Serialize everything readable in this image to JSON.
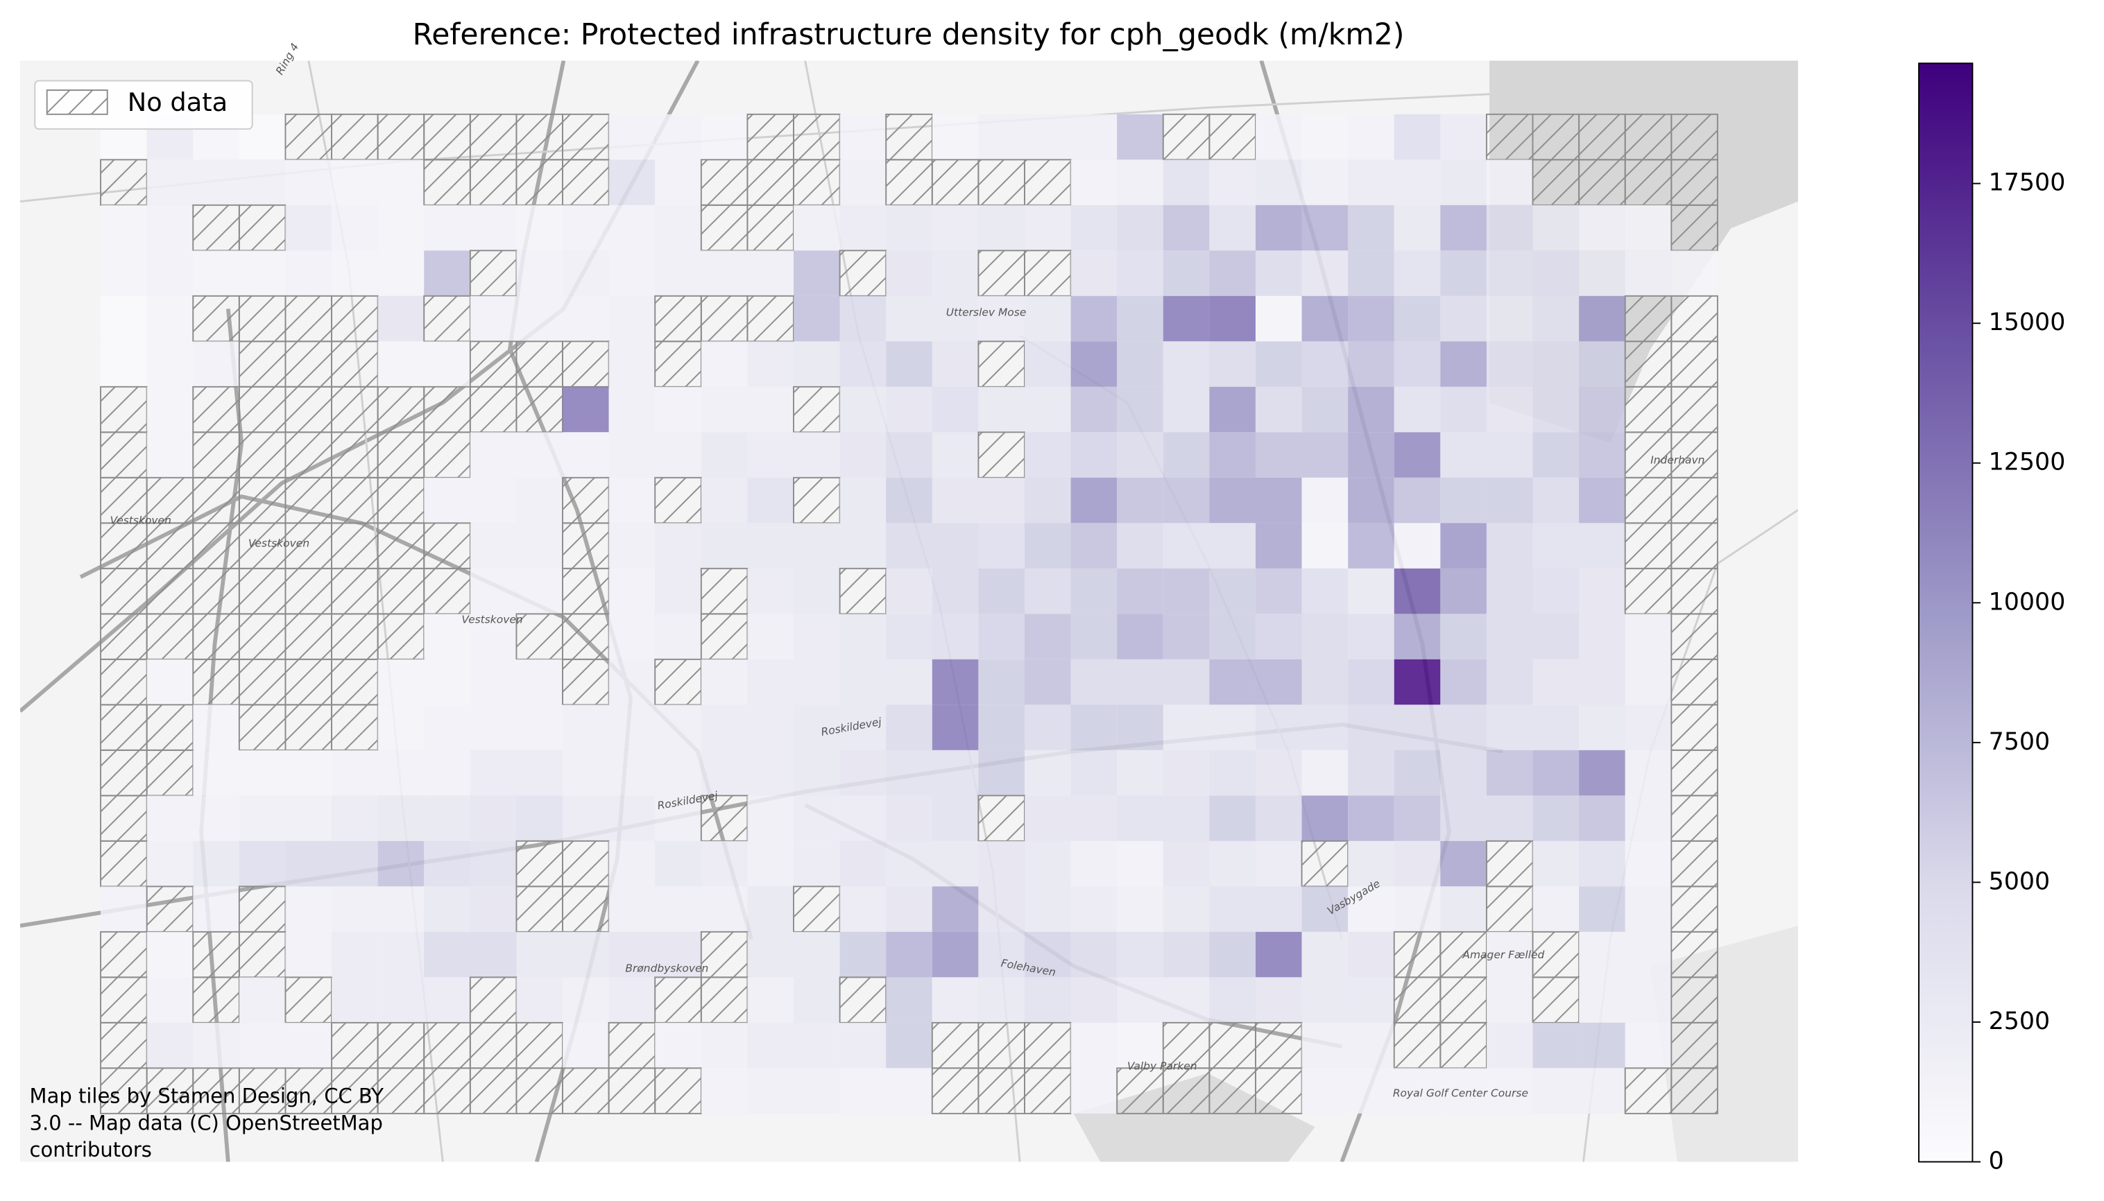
{
  "chart_data": {
    "type": "heatmap",
    "title": "Reference: Protected infrastructure density for cph_geodk (m/km2)",
    "legend_label": "No data",
    "attribution": [
      "Map tiles by Stamen Design, CC BY",
      "3.0 -- Map data (C) OpenStreetMap",
      "contributors"
    ],
    "map_labels": [
      "Ring 4",
      "Vestskoven",
      "Vestskoven",
      "Vestskoven",
      "Utterslev Mose",
      "Roskildevej",
      "Roskildevej",
      "Brøndbyskoven",
      "Folehaven",
      "Valby Parken",
      "Royal Golf Center Course",
      "Amager Fælled",
      "Inderhavn",
      "Vasbygade"
    ],
    "colormap": [
      "#fcfbfd",
      "#dadaeb",
      "#9e9ac8",
      "#6a51a3",
      "#3f007d"
    ],
    "clim": [
      0,
      19650
    ],
    "cticks": [
      0,
      2500,
      5000,
      7500,
      10000,
      12500,
      15000,
      17500
    ],
    "grid": [
      [
        500,
        2500,
        800,
        500,
        null,
        null,
        null,
        null,
        null,
        null,
        null,
        1500,
        1500,
        1000,
        null,
        null,
        1500,
        null,
        1000,
        2000,
        2000,
        2000,
        7000,
        null,
        null,
        1500,
        1000,
        1500,
        4500,
        2500,
        null,
        null,
        null,
        null,
        null
      ],
      [
        null,
        2000,
        2000,
        2000,
        1500,
        1000,
        1000,
        null,
        null,
        null,
        null,
        4000,
        1500,
        null,
        null,
        null,
        2000,
        null,
        null,
        null,
        null,
        1500,
        2000,
        4000,
        2500,
        3000,
        2000,
        2500,
        2500,
        3000,
        1500,
        null,
        null,
        null,
        null
      ],
      [
        1000,
        1500,
        null,
        null,
        2500,
        1500,
        1000,
        1500,
        1500,
        1000,
        1500,
        1500,
        2000,
        null,
        null,
        2000,
        2500,
        3000,
        2500,
        3000,
        2500,
        4000,
        5000,
        7000,
        4000,
        9000,
        8000,
        6000,
        3000,
        8000,
        5000,
        3000,
        1500,
        1000,
        null
      ],
      [
        1000,
        1500,
        1000,
        1000,
        1500,
        1000,
        1000,
        7000,
        null,
        1500,
        2000,
        1500,
        2000,
        2000,
        2000,
        7000,
        null,
        3500,
        3000,
        null,
        null,
        3500,
        4500,
        6000,
        7000,
        5000,
        3500,
        6000,
        4000,
        6000,
        4000,
        4500,
        3000,
        1500,
        1000
      ],
      [
        500,
        1000,
        null,
        null,
        null,
        null,
        3500,
        null,
        1500,
        1500,
        1500,
        2000,
        null,
        null,
        null,
        7000,
        5000,
        3000,
        3000,
        2500,
        3000,
        8000,
        6000,
        12000,
        12500,
        1000,
        9000,
        8000,
        6000,
        5000,
        3000,
        4000,
        10000,
        null,
        null
      ],
      [
        500,
        1000,
        1500,
        null,
        null,
        null,
        1000,
        1000,
        null,
        null,
        null,
        2000,
        null,
        1500,
        2500,
        3000,
        4500,
        6000,
        3500,
        null,
        4000,
        10000,
        6000,
        4000,
        5000,
        6000,
        5500,
        7000,
        5500,
        9000,
        4500,
        5000,
        6000,
        null,
        null
      ],
      [
        null,
        1000,
        null,
        null,
        null,
        null,
        null,
        null,
        null,
        null,
        12000,
        2000,
        1500,
        2000,
        2000,
        null,
        3000,
        3500,
        4500,
        3000,
        3000,
        7000,
        6000,
        4000,
        10000,
        5000,
        6000,
        9000,
        4000,
        5000,
        3500,
        5000,
        6500,
        null,
        null
      ],
      [
        null,
        1000,
        null,
        null,
        null,
        null,
        null,
        null,
        1500,
        1500,
        1500,
        2000,
        2000,
        3000,
        2500,
        2500,
        3500,
        5000,
        3000,
        null,
        4500,
        5500,
        5000,
        6000,
        8000,
        7000,
        7000,
        9000,
        11000,
        4000,
        4000,
        6000,
        7000,
        null,
        null
      ],
      [
        null,
        null,
        null,
        null,
        null,
        null,
        null,
        1500,
        1500,
        2000,
        null,
        1500,
        null,
        2500,
        4000,
        null,
        3000,
        6000,
        3500,
        3500,
        5000,
        10000,
        7000,
        7000,
        9000,
        9000,
        1500,
        9000,
        7000,
        6000,
        6000,
        5000,
        8000,
        null,
        null
      ],
      [
        null,
        null,
        null,
        null,
        null,
        null,
        null,
        null,
        2000,
        2000,
        null,
        2000,
        2500,
        3000,
        3000,
        3000,
        3000,
        5000,
        5000,
        4500,
        6000,
        7000,
        5000,
        4000,
        4000,
        9000,
        1000,
        8000,
        1500,
        10000,
        5000,
        4000,
        4000,
        null,
        null
      ],
      [
        null,
        null,
        null,
        null,
        null,
        null,
        null,
        null,
        1500,
        1500,
        null,
        1500,
        2500,
        null,
        2500,
        3000,
        null,
        3500,
        5000,
        6000,
        5000,
        6000,
        7000,
        7000,
        6000,
        6500,
        4500,
        3000,
        14000,
        9000,
        5000,
        4500,
        3500,
        null,
        null
      ],
      [
        null,
        null,
        null,
        null,
        null,
        null,
        null,
        1000,
        1500,
        null,
        null,
        1500,
        2000,
        null,
        2000,
        2500,
        3000,
        4000,
        4500,
        5500,
        7000,
        6000,
        8000,
        7000,
        6000,
        5500,
        5000,
        4500,
        9000,
        6000,
        5000,
        5000,
        3500,
        2000,
        null
      ],
      [
        null,
        1000,
        null,
        null,
        null,
        null,
        1000,
        1000,
        1500,
        1500,
        null,
        2000,
        null,
        2000,
        2500,
        2500,
        3000,
        3000,
        12000,
        6000,
        7000,
        5000,
        5000,
        5000,
        8000,
        8000,
        5000,
        5500,
        19000,
        7000,
        5000,
        3500,
        3500,
        2000,
        null
      ],
      [
        null,
        null,
        1000,
        null,
        null,
        null,
        1000,
        1500,
        1500,
        1500,
        2000,
        2000,
        2000,
        2500,
        2500,
        3000,
        3000,
        5000,
        12000,
        6000,
        5000,
        6000,
        6000,
        3000,
        3000,
        4000,
        4000,
        5000,
        5000,
        5000,
        4000,
        4000,
        3000,
        2500,
        null
      ],
      [
        null,
        null,
        1000,
        1000,
        1000,
        1500,
        1500,
        1500,
        2500,
        2500,
        2000,
        2000,
        2000,
        2500,
        2500,
        3000,
        3500,
        4000,
        4000,
        6000,
        3000,
        4000,
        3000,
        3500,
        4000,
        3500,
        2000,
        5000,
        6000,
        5000,
        7000,
        8000,
        11000,
        2000,
        null
      ],
      [
        null,
        1500,
        1500,
        2000,
        2000,
        2500,
        3000,
        3000,
        3500,
        4000,
        2500,
        2500,
        2000,
        null,
        2000,
        2500,
        2500,
        3500,
        4000,
        null,
        3500,
        3500,
        4000,
        4000,
        6000,
        5000,
        10000,
        8000,
        7000,
        5000,
        5000,
        6000,
        7000,
        2000,
        null
      ],
      [
        null,
        2000,
        3000,
        4500,
        5000,
        5000,
        7000,
        4500,
        4000,
        null,
        null,
        2000,
        3000,
        2500,
        2000,
        2500,
        3500,
        3000,
        3000,
        3500,
        3000,
        2000,
        1500,
        3500,
        3000,
        2500,
        null,
        3000,
        3500,
        9000,
        null,
        3000,
        4000,
        1500,
        null
      ],
      [
        1500,
        null,
        1500,
        null,
        1500,
        2000,
        2000,
        3000,
        3500,
        null,
        null,
        2000,
        2000,
        2000,
        3000,
        null,
        2500,
        3500,
        9000,
        3500,
        3000,
        2500,
        2000,
        3000,
        4000,
        4000,
        6000,
        1500,
        2000,
        3000,
        null,
        2000,
        6000,
        2000,
        null
      ],
      [
        null,
        1000,
        null,
        null,
        1500,
        2500,
        2500,
        5000,
        5000,
        3000,
        3000,
        3500,
        3500,
        null,
        3000,
        3000,
        6000,
        8000,
        10000,
        4000,
        5500,
        5000,
        4000,
        5000,
        6000,
        12000,
        3000,
        3500,
        null,
        null,
        2000,
        null,
        2000,
        2000,
        null
      ],
      [
        null,
        1500,
        null,
        2000,
        null,
        2500,
        2500,
        2500,
        null,
        2500,
        2000,
        2500,
        null,
        null,
        2000,
        3000,
        null,
        6000,
        2500,
        3000,
        4000,
        3500,
        2500,
        2500,
        4000,
        3500,
        3000,
        3000,
        null,
        null,
        2000,
        null,
        2000,
        2000,
        null
      ],
      [
        null,
        2500,
        2000,
        1500,
        1500,
        null,
        null,
        null,
        null,
        null,
        1500,
        null,
        1500,
        2000,
        2500,
        2500,
        2500,
        6000,
        null,
        null,
        null,
        1500,
        1000,
        null,
        null,
        null,
        2000,
        2000,
        null,
        null,
        2500,
        6000,
        6000,
        1500,
        null
      ],
      [
        null,
        null,
        null,
        null,
        null,
        null,
        null,
        null,
        null,
        null,
        null,
        null,
        null,
        1500,
        2000,
        2000,
        1500,
        1500,
        null,
        null,
        null,
        1500,
        null,
        null,
        null,
        null,
        1500,
        1500,
        1500,
        1500,
        1500,
        2000,
        2000,
        null,
        null
      ]
    ]
  }
}
